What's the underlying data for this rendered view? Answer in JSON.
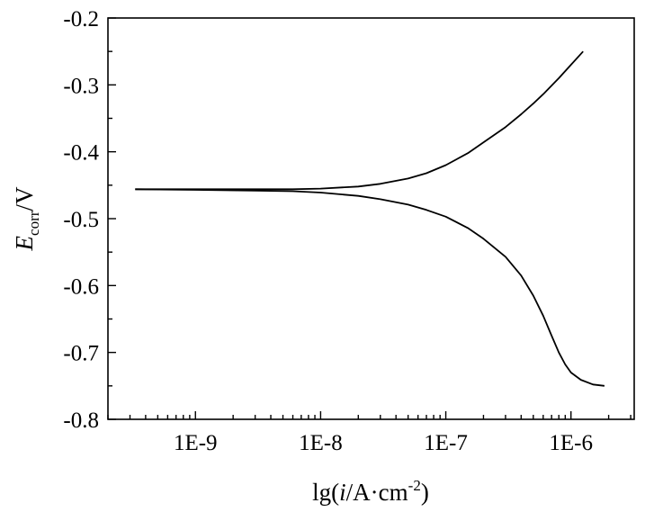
{
  "chart_data": {
    "type": "line",
    "xscale": "log",
    "xlim": [
      2e-10,
      3.2e-06
    ],
    "ylim": [
      -0.8,
      -0.2
    ],
    "xticks": [
      1e-09,
      1e-08,
      1e-07,
      1e-06
    ],
    "xtick_labels": [
      "1E-9",
      "1E-8",
      "1E-7",
      "1E-6"
    ],
    "yticks": [
      -0.8,
      -0.7,
      -0.6,
      -0.5,
      -0.4,
      -0.3,
      -0.2
    ],
    "ytick_labels": [
      "-0.8",
      "-0.7",
      "-0.6",
      "-0.5",
      "-0.4",
      "-0.3",
      "-0.2"
    ],
    "xlabel": {
      "pre": "lg(",
      "var": "i",
      "mid": "/A·cm",
      "sup": "-2",
      "post": ")"
    },
    "ylabel": {
      "var": "E",
      "sub": "corr",
      "post": "/V"
    },
    "grid": false,
    "legend": "none",
    "line_color": "#000000",
    "series": [
      {
        "x": [
          3.3e-10,
          1e-09,
          3e-09,
          6e-09,
          1e-08,
          2e-08,
          3e-08,
          5e-08,
          7e-08,
          1e-07,
          1.5e-07,
          2e-07,
          3e-07,
          4e-07,
          5e-07,
          6e-07,
          8e-07,
          1e-06,
          1.25e-06
        ],
        "y": [
          -0.456,
          -0.456,
          -0.456,
          -0.456,
          -0.455,
          -0.452,
          -0.448,
          -0.44,
          -0.432,
          -0.42,
          -0.402,
          -0.386,
          -0.363,
          -0.344,
          -0.328,
          -0.314,
          -0.29,
          -0.27,
          -0.25
        ]
      },
      {
        "x": [
          3.3e-10,
          1e-09,
          3e-09,
          6e-09,
          1e-08,
          2e-08,
          3e-08,
          5e-08,
          7e-08,
          1e-07,
          1.5e-07,
          2e-07,
          3e-07,
          4e-07,
          5e-07,
          6e-07,
          7e-07,
          8e-07,
          9e-07,
          1e-06,
          1.2e-06,
          1.5e-06,
          1.85e-06
        ],
        "y": [
          -0.456,
          -0.457,
          -0.458,
          -0.459,
          -0.461,
          -0.466,
          -0.471,
          -0.479,
          -0.487,
          -0.497,
          -0.514,
          -0.53,
          -0.557,
          -0.585,
          -0.615,
          -0.645,
          -0.675,
          -0.7,
          -0.718,
          -0.73,
          -0.741,
          -0.748,
          -0.75
        ]
      }
    ]
  }
}
